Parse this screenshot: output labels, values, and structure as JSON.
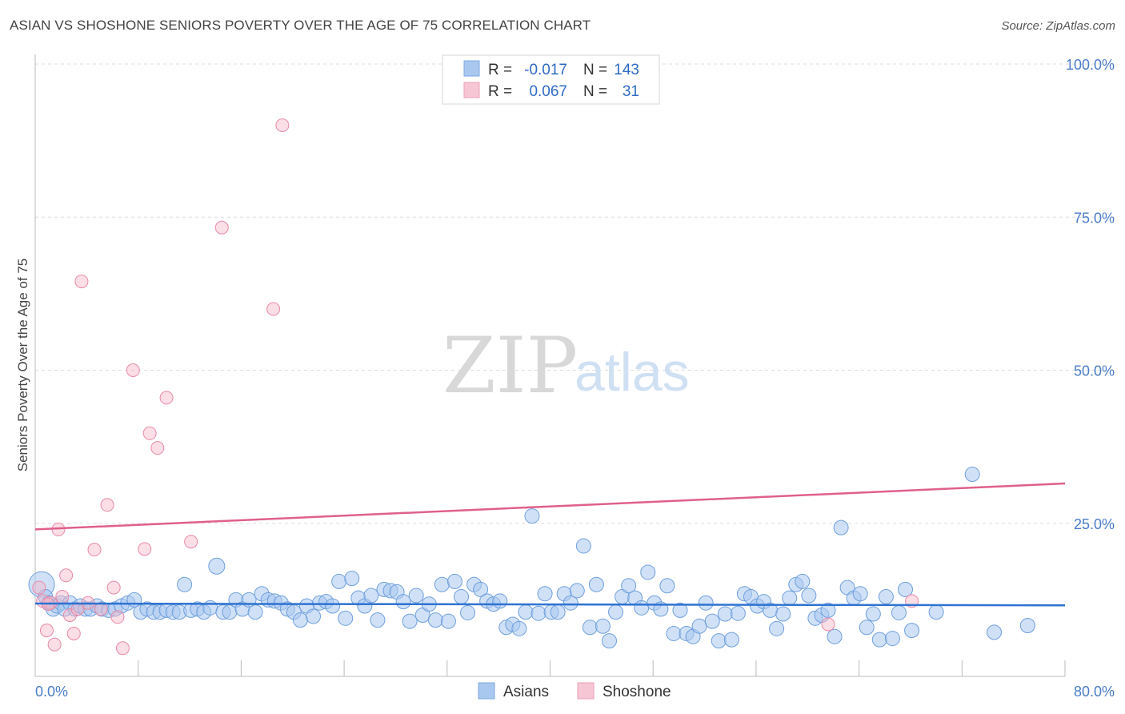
{
  "header": {
    "title": "ASIAN VS SHOSHONE SENIORS POVERTY OVER THE AGE OF 75 CORRELATION CHART",
    "source": "Source: ZipAtlas.com"
  },
  "watermark": {
    "zip": "ZIP",
    "atlas": "atlas"
  },
  "legend": {
    "rows": [
      {
        "r_label": "R =",
        "r_value": "-0.017",
        "n_label": "N =",
        "n_value": "143",
        "color": "#a9c8f0"
      },
      {
        "r_label": "R =",
        "r_value": "0.067",
        "n_label": "N =",
        "n_value": "31",
        "color": "#f6b6c8"
      }
    ]
  },
  "bottom_legend": {
    "asians": "Asians",
    "shoshone": "Shoshone"
  },
  "chart_data": {
    "type": "scatter",
    "ylabel": "Seniors Poverty Over the Age of 75",
    "xlim": [
      0,
      80
    ],
    "ylim": [
      0,
      100
    ],
    "x_tick_labels": [
      "0.0%",
      "80.0%"
    ],
    "y_ticks": [
      25,
      50,
      75,
      100
    ],
    "y_tick_labels": [
      "25.0%",
      "50.0%",
      "75.0%",
      "100.0%"
    ],
    "grid": true,
    "legend_position": "top-center",
    "colors": {
      "asians": "#a9c8f0",
      "asians_line": "#2f73d2",
      "shoshone": "#f6b6c8",
      "shoshone_line": "#e0608a"
    },
    "series": [
      {
        "name": "Asians",
        "trend": {
          "x": [
            0,
            80
          ],
          "y": [
            11.9,
            11.6
          ]
        },
        "points": [
          [
            0.5,
            15
          ],
          [
            0.8,
            13
          ],
          [
            1.1,
            12
          ],
          [
            1.4,
            11
          ],
          [
            1.7,
            11.5
          ],
          [
            2,
            12
          ],
          [
            2.3,
            11
          ],
          [
            2.7,
            12
          ],
          [
            3.1,
            11
          ],
          [
            3.5,
            11.5
          ],
          [
            3.9,
            11
          ],
          [
            4.3,
            11
          ],
          [
            4.8,
            11.5
          ],
          [
            5.2,
            11
          ],
          [
            5.7,
            10.8
          ],
          [
            6.2,
            11
          ],
          [
            6.7,
            11.5
          ],
          [
            7.2,
            12
          ],
          [
            7.7,
            12.5
          ],
          [
            8.2,
            10.5
          ],
          [
            8.7,
            11
          ],
          [
            9.2,
            10.5
          ],
          [
            9.7,
            10.5
          ],
          [
            10.2,
            10.8
          ],
          [
            10.7,
            10.5
          ],
          [
            11.2,
            10.5
          ],
          [
            11.6,
            15
          ],
          [
            12.1,
            10.8
          ],
          [
            12.6,
            11
          ],
          [
            13.1,
            10.5
          ],
          [
            13.6,
            11.2
          ],
          [
            14.1,
            18
          ],
          [
            14.6,
            10.5
          ],
          [
            15.1,
            10.5
          ],
          [
            15.6,
            12.5
          ],
          [
            16.1,
            11
          ],
          [
            16.6,
            12.5
          ],
          [
            17.1,
            10.5
          ],
          [
            17.6,
            13.5
          ],
          [
            18.1,
            12.5
          ],
          [
            18.6,
            12.3
          ],
          [
            19.1,
            12
          ],
          [
            19.6,
            11
          ],
          [
            20.1,
            10.5
          ],
          [
            20.6,
            9.2
          ],
          [
            21.1,
            11.5
          ],
          [
            21.6,
            9.8
          ],
          [
            22.1,
            12
          ],
          [
            22.6,
            12.2
          ],
          [
            23.1,
            11.5
          ],
          [
            23.6,
            15.5
          ],
          [
            24.1,
            9.5
          ],
          [
            24.6,
            16
          ],
          [
            25.1,
            12.8
          ],
          [
            25.6,
            11.5
          ],
          [
            26.1,
            13.2
          ],
          [
            26.6,
            9.2
          ],
          [
            27.1,
            14.2
          ],
          [
            27.6,
            14
          ],
          [
            28.1,
            13.8
          ],
          [
            28.6,
            12.2
          ],
          [
            29.1,
            9
          ],
          [
            29.6,
            13.2
          ],
          [
            30.1,
            10
          ],
          [
            30.6,
            11.8
          ],
          [
            31.1,
            9.2
          ],
          [
            31.6,
            15
          ],
          [
            32.1,
            9
          ],
          [
            32.6,
            15.5
          ],
          [
            33.1,
            13
          ],
          [
            33.6,
            10.4
          ],
          [
            34.1,
            15
          ],
          [
            34.6,
            14.2
          ],
          [
            35.1,
            12.3
          ],
          [
            35.6,
            11.8
          ],
          [
            36.1,
            12.3
          ],
          [
            36.6,
            8
          ],
          [
            37.1,
            8.5
          ],
          [
            37.6,
            7.8
          ],
          [
            38.1,
            10.5
          ],
          [
            38.6,
            26.2
          ],
          [
            39.1,
            10.3
          ],
          [
            39.6,
            13.5
          ],
          [
            40.1,
            10.5
          ],
          [
            40.6,
            10.5
          ],
          [
            41.1,
            13.5
          ],
          [
            41.6,
            12
          ],
          [
            42.1,
            14
          ],
          [
            42.6,
            21.3
          ],
          [
            43.1,
            8
          ],
          [
            43.6,
            15
          ],
          [
            44.1,
            8.2
          ],
          [
            44.6,
            5.8
          ],
          [
            45.1,
            10.5
          ],
          [
            45.6,
            13
          ],
          [
            46.1,
            14.8
          ],
          [
            46.6,
            12.8
          ],
          [
            47.1,
            11.2
          ],
          [
            47.6,
            17
          ],
          [
            48.1,
            12
          ],
          [
            48.6,
            11
          ],
          [
            49.1,
            14.8
          ],
          [
            49.6,
            7
          ],
          [
            50.1,
            10.8
          ],
          [
            50.6,
            7
          ],
          [
            51.1,
            6.5
          ],
          [
            51.6,
            8.2
          ],
          [
            52.1,
            12
          ],
          [
            52.6,
            9
          ],
          [
            53.1,
            5.8
          ],
          [
            53.6,
            10.2
          ],
          [
            54.1,
            6
          ],
          [
            54.6,
            10.3
          ],
          [
            55.1,
            13.5
          ],
          [
            55.6,
            13
          ],
          [
            56.1,
            11.5
          ],
          [
            56.6,
            12.2
          ],
          [
            57.1,
            10.8
          ],
          [
            57.6,
            7.8
          ],
          [
            58.1,
            10.2
          ],
          [
            58.6,
            12.8
          ],
          [
            59.1,
            15
          ],
          [
            59.6,
            15.5
          ],
          [
            60.1,
            13.2
          ],
          [
            60.6,
            9.5
          ],
          [
            61.1,
            10
          ],
          [
            61.6,
            10.8
          ],
          [
            62.1,
            6.5
          ],
          [
            62.6,
            24.3
          ],
          [
            63.1,
            14.5
          ],
          [
            63.6,
            12.8
          ],
          [
            64.1,
            13.5
          ],
          [
            64.6,
            8
          ],
          [
            65.1,
            10.2
          ],
          [
            65.6,
            6
          ],
          [
            66.1,
            13
          ],
          [
            66.6,
            6.2
          ],
          [
            67.1,
            10.4
          ],
          [
            67.6,
            14.2
          ],
          [
            68.1,
            7.5
          ],
          [
            70,
            10.5
          ],
          [
            72.8,
            33
          ],
          [
            74.5,
            7.2
          ],
          [
            77.1,
            8.3
          ]
        ]
      },
      {
        "name": "Shoshone",
        "trend": {
          "x": [
            0,
            80
          ],
          "y": [
            24.0,
            31.5
          ]
        },
        "points": [
          [
            0.3,
            14.5
          ],
          [
            0.6,
            12.3
          ],
          [
            0.9,
            7.5
          ],
          [
            1.2,
            12
          ],
          [
            1.5,
            5.2
          ],
          [
            1.8,
            24
          ],
          [
            2.1,
            13
          ],
          [
            2.4,
            16.5
          ],
          [
            2.7,
            10
          ],
          [
            3.0,
            7
          ],
          [
            3.3,
            11
          ],
          [
            3.6,
            64.5
          ],
          [
            4.1,
            12
          ],
          [
            4.6,
            20.7
          ],
          [
            5.1,
            11
          ],
          [
            5.6,
            28
          ],
          [
            6.1,
            14.5
          ],
          [
            6.4,
            9.7
          ],
          [
            6.8,
            4.6
          ],
          [
            7.6,
            50
          ],
          [
            8.5,
            20.8
          ],
          [
            8.9,
            39.7
          ],
          [
            9.5,
            37.3
          ],
          [
            10.2,
            45.5
          ],
          [
            12.1,
            22
          ],
          [
            14.5,
            73.3
          ],
          [
            18.5,
            60
          ],
          [
            19.2,
            90
          ],
          [
            61.6,
            8.5
          ],
          [
            68.1,
            12.3
          ],
          [
            1.0,
            11.8
          ]
        ]
      }
    ]
  }
}
